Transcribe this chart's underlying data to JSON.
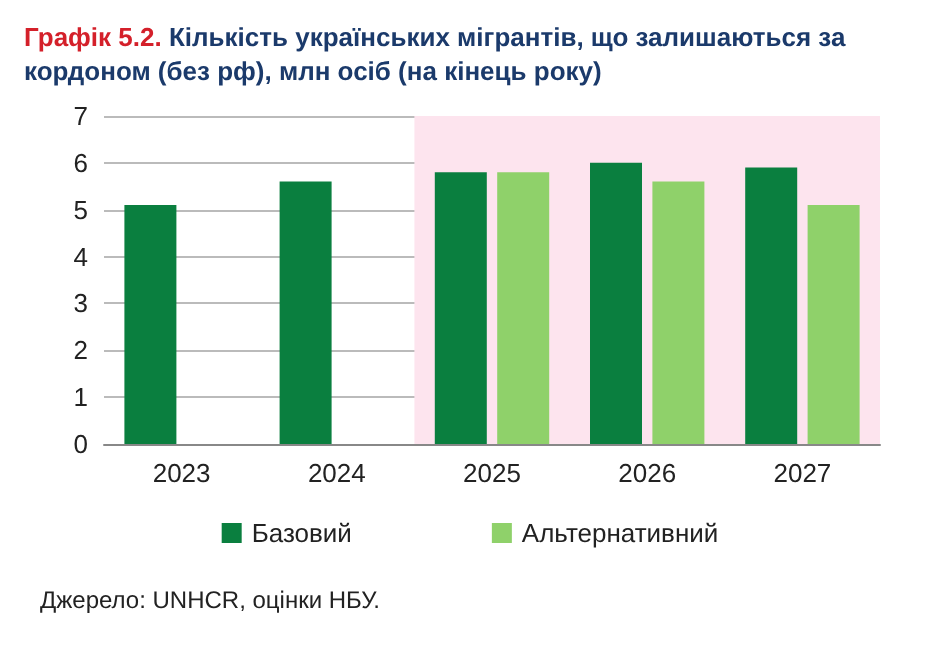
{
  "chart_data": {
    "type": "bar",
    "title": "Графік 5.2. Кількість українських мігрантів, що залишаються за кордоном (без рф), млн осіб (на кінець року)",
    "categories": [
      "2023",
      "2024",
      "2025",
      "2026",
      "2027"
    ],
    "series": [
      {
        "name": "Базовий",
        "color": "#0a7f3f",
        "values": [
          5.1,
          5.6,
          5.8,
          6.0,
          5.9
        ]
      },
      {
        "name": "Альтернативний",
        "color": "#8fd16a",
        "values": [
          null,
          null,
          5.8,
          5.6,
          5.1
        ]
      }
    ],
    "ylim": [
      0,
      7
    ],
    "yticks": [
      0,
      1,
      2,
      3,
      4,
      5,
      6,
      7
    ],
    "grid": "y",
    "legend": "bottom",
    "bands": [
      {
        "axis": "x",
        "from": "2025",
        "to": "2027",
        "color": "#fde4ee"
      }
    ],
    "annotations": [
      "Джерело: UNHCR, оцінки НБУ."
    ]
  }
}
